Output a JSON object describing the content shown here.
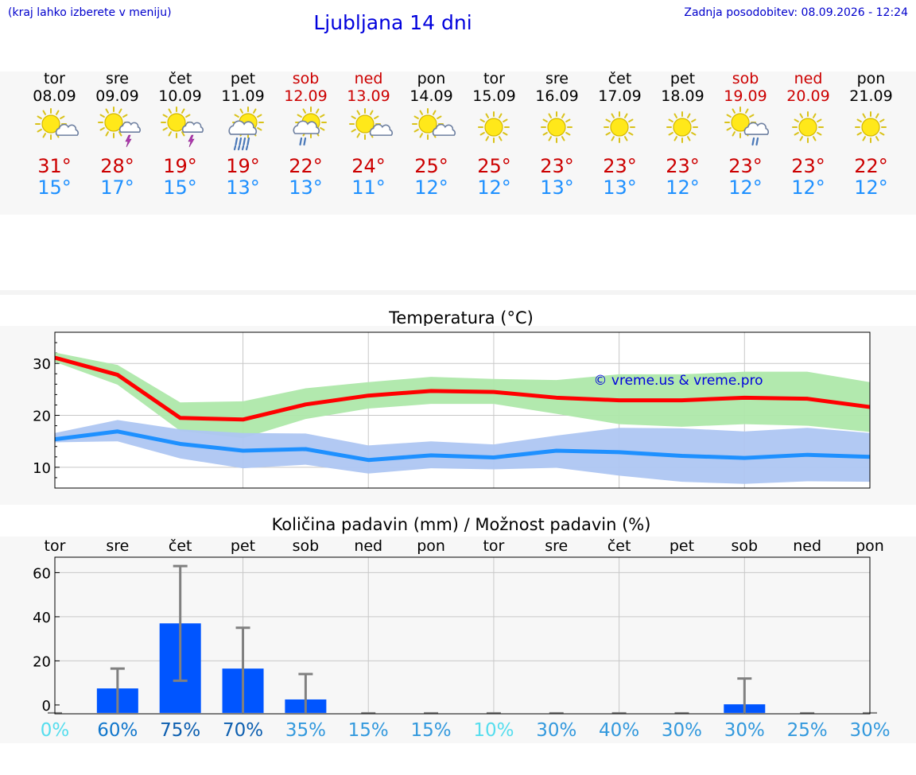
{
  "header": {
    "hint": "(kraj lahko izberete v meniju)",
    "title": "Ljubljana 14 dni",
    "updated": "Zadnja posodobitev: 08.09.2026 - 12:24"
  },
  "days": [
    {
      "day": "tor",
      "date": "08.09",
      "weekend": false,
      "icon": "sun-cloud-icon",
      "high": "31°",
      "low": "15°"
    },
    {
      "day": "sre",
      "date": "09.09",
      "weekend": false,
      "icon": "sun-thunderstorm-icon",
      "high": "28°",
      "low": "17°"
    },
    {
      "day": "čet",
      "date": "10.09",
      "weekend": false,
      "icon": "sun-thunderstorm-icon",
      "high": "19°",
      "low": "15°"
    },
    {
      "day": "pet",
      "date": "11.09",
      "weekend": false,
      "icon": "sun-rain-icon",
      "high": "19°",
      "low": "13°"
    },
    {
      "day": "sob",
      "date": "12.09",
      "weekend": true,
      "icon": "sun-light-rain-icon",
      "high": "22°",
      "low": "13°"
    },
    {
      "day": "ned",
      "date": "13.09",
      "weekend": true,
      "icon": "sun-cloud-icon",
      "high": "24°",
      "low": "11°"
    },
    {
      "day": "pon",
      "date": "14.09",
      "weekend": false,
      "icon": "sun-cloud-icon",
      "high": "25°",
      "low": "12°"
    },
    {
      "day": "tor",
      "date": "15.09",
      "weekend": false,
      "icon": "sun-icon",
      "high": "25°",
      "low": "12°"
    },
    {
      "day": "sre",
      "date": "16.09",
      "weekend": false,
      "icon": "sun-icon",
      "high": "23°",
      "low": "13°"
    },
    {
      "day": "čet",
      "date": "17.09",
      "weekend": false,
      "icon": "sun-icon",
      "high": "23°",
      "low": "13°"
    },
    {
      "day": "pet",
      "date": "18.09",
      "weekend": false,
      "icon": "sun-icon",
      "high": "23°",
      "low": "12°"
    },
    {
      "day": "sob",
      "date": "19.09",
      "weekend": true,
      "icon": "sun-cloud-rain-icon",
      "high": "23°",
      "low": "12°"
    },
    {
      "day": "ned",
      "date": "20.09",
      "weekend": true,
      "icon": "sun-icon",
      "high": "23°",
      "low": "12°"
    },
    {
      "day": "pon",
      "date": "21.09",
      "weekend": false,
      "icon": "sun-icon",
      "high": "22°",
      "low": "12°"
    }
  ],
  "colors": {
    "high": "#cc0000",
    "low": "#1e90ff",
    "high_band": "#aee8aa",
    "low_band": "#aec6f2",
    "high_line": "#ff0000",
    "low_line": "#1e90ff",
    "bar": "#0055ff",
    "whisker": "#808080",
    "title": "#0000dd",
    "weekend": "#cc0000"
  },
  "chart_data": [
    {
      "type": "line",
      "title": "Temperatura (°C)",
      "watermark": "© vreme.us & vreme.pro",
      "ylim": [
        6,
        36
      ],
      "yticks": [
        10,
        20,
        30
      ],
      "grid": true,
      "series": [
        {
          "values": [
            31.1,
            27.8,
            19.5,
            19.2,
            22.1,
            23.8,
            24.7,
            24.5,
            23.4,
            22.9,
            22.9,
            23.4,
            23.2,
            21.6
          ],
          "band_low": [
            30.3,
            25.9,
            17.0,
            15.6,
            19.3,
            21.3,
            22.2,
            22.2,
            20.3,
            18.3,
            17.8,
            18.3,
            18.0,
            16.8
          ],
          "band_high": [
            32.1,
            29.7,
            22.5,
            22.7,
            25.2,
            26.4,
            27.4,
            27.0,
            26.8,
            27.9,
            27.9,
            28.4,
            28.4,
            26.4
          ]
        },
        {
          "values": [
            15.4,
            16.9,
            14.5,
            13.2,
            13.5,
            11.4,
            12.3,
            11.9,
            13.2,
            12.9,
            12.2,
            11.8,
            12.4,
            12.0
          ],
          "band_low": [
            14.8,
            15.0,
            11.7,
            9.8,
            10.5,
            8.8,
            9.8,
            9.6,
            9.9,
            8.4,
            7.2,
            6.8,
            7.3,
            7.2
          ],
          "band_high": [
            16.6,
            19.1,
            17.3,
            16.6,
            16.5,
            14.2,
            15.0,
            14.4,
            16.1,
            17.6,
            17.5,
            16.9,
            17.6,
            16.6
          ]
        }
      ]
    },
    {
      "type": "bar",
      "title": "Količina padavin (mm) / Možnost padavin (%)",
      "categories": [
        "tor",
        "sre",
        "čet",
        "pet",
        "sob",
        "ned",
        "pon",
        "tor",
        "sre",
        "čet",
        "pet",
        "sob",
        "ned",
        "pon"
      ],
      "ylim": [
        -4,
        67
      ],
      "yticks": [
        0,
        20,
        40,
        60
      ],
      "values": [
        0,
        7.5,
        37,
        16.5,
        2.5,
        0,
        0,
        0,
        0,
        0,
        0,
        0.3,
        0,
        0
      ],
      "error_low": [
        0,
        0,
        11,
        0,
        0,
        0,
        0,
        0,
        0,
        0,
        0,
        0,
        0,
        0
      ],
      "error_high": [
        0,
        16.5,
        63,
        35,
        14,
        0,
        0,
        0,
        0,
        0,
        0,
        12,
        0,
        0
      ],
      "probability": [
        "0%",
        "60%",
        "75%",
        "70%",
        "35%",
        "15%",
        "15%",
        "10%",
        "30%",
        "40%",
        "30%",
        "30%",
        "25%",
        "30%"
      ],
      "probability_colors": [
        "#55ddee",
        "#1177cc",
        "#0d5fb0",
        "#0d5fb0",
        "#3399dd",
        "#3399dd",
        "#3399dd",
        "#55ddee",
        "#3399dd",
        "#3399dd",
        "#3399dd",
        "#3399dd",
        "#3399dd",
        "#3399dd"
      ]
    }
  ]
}
